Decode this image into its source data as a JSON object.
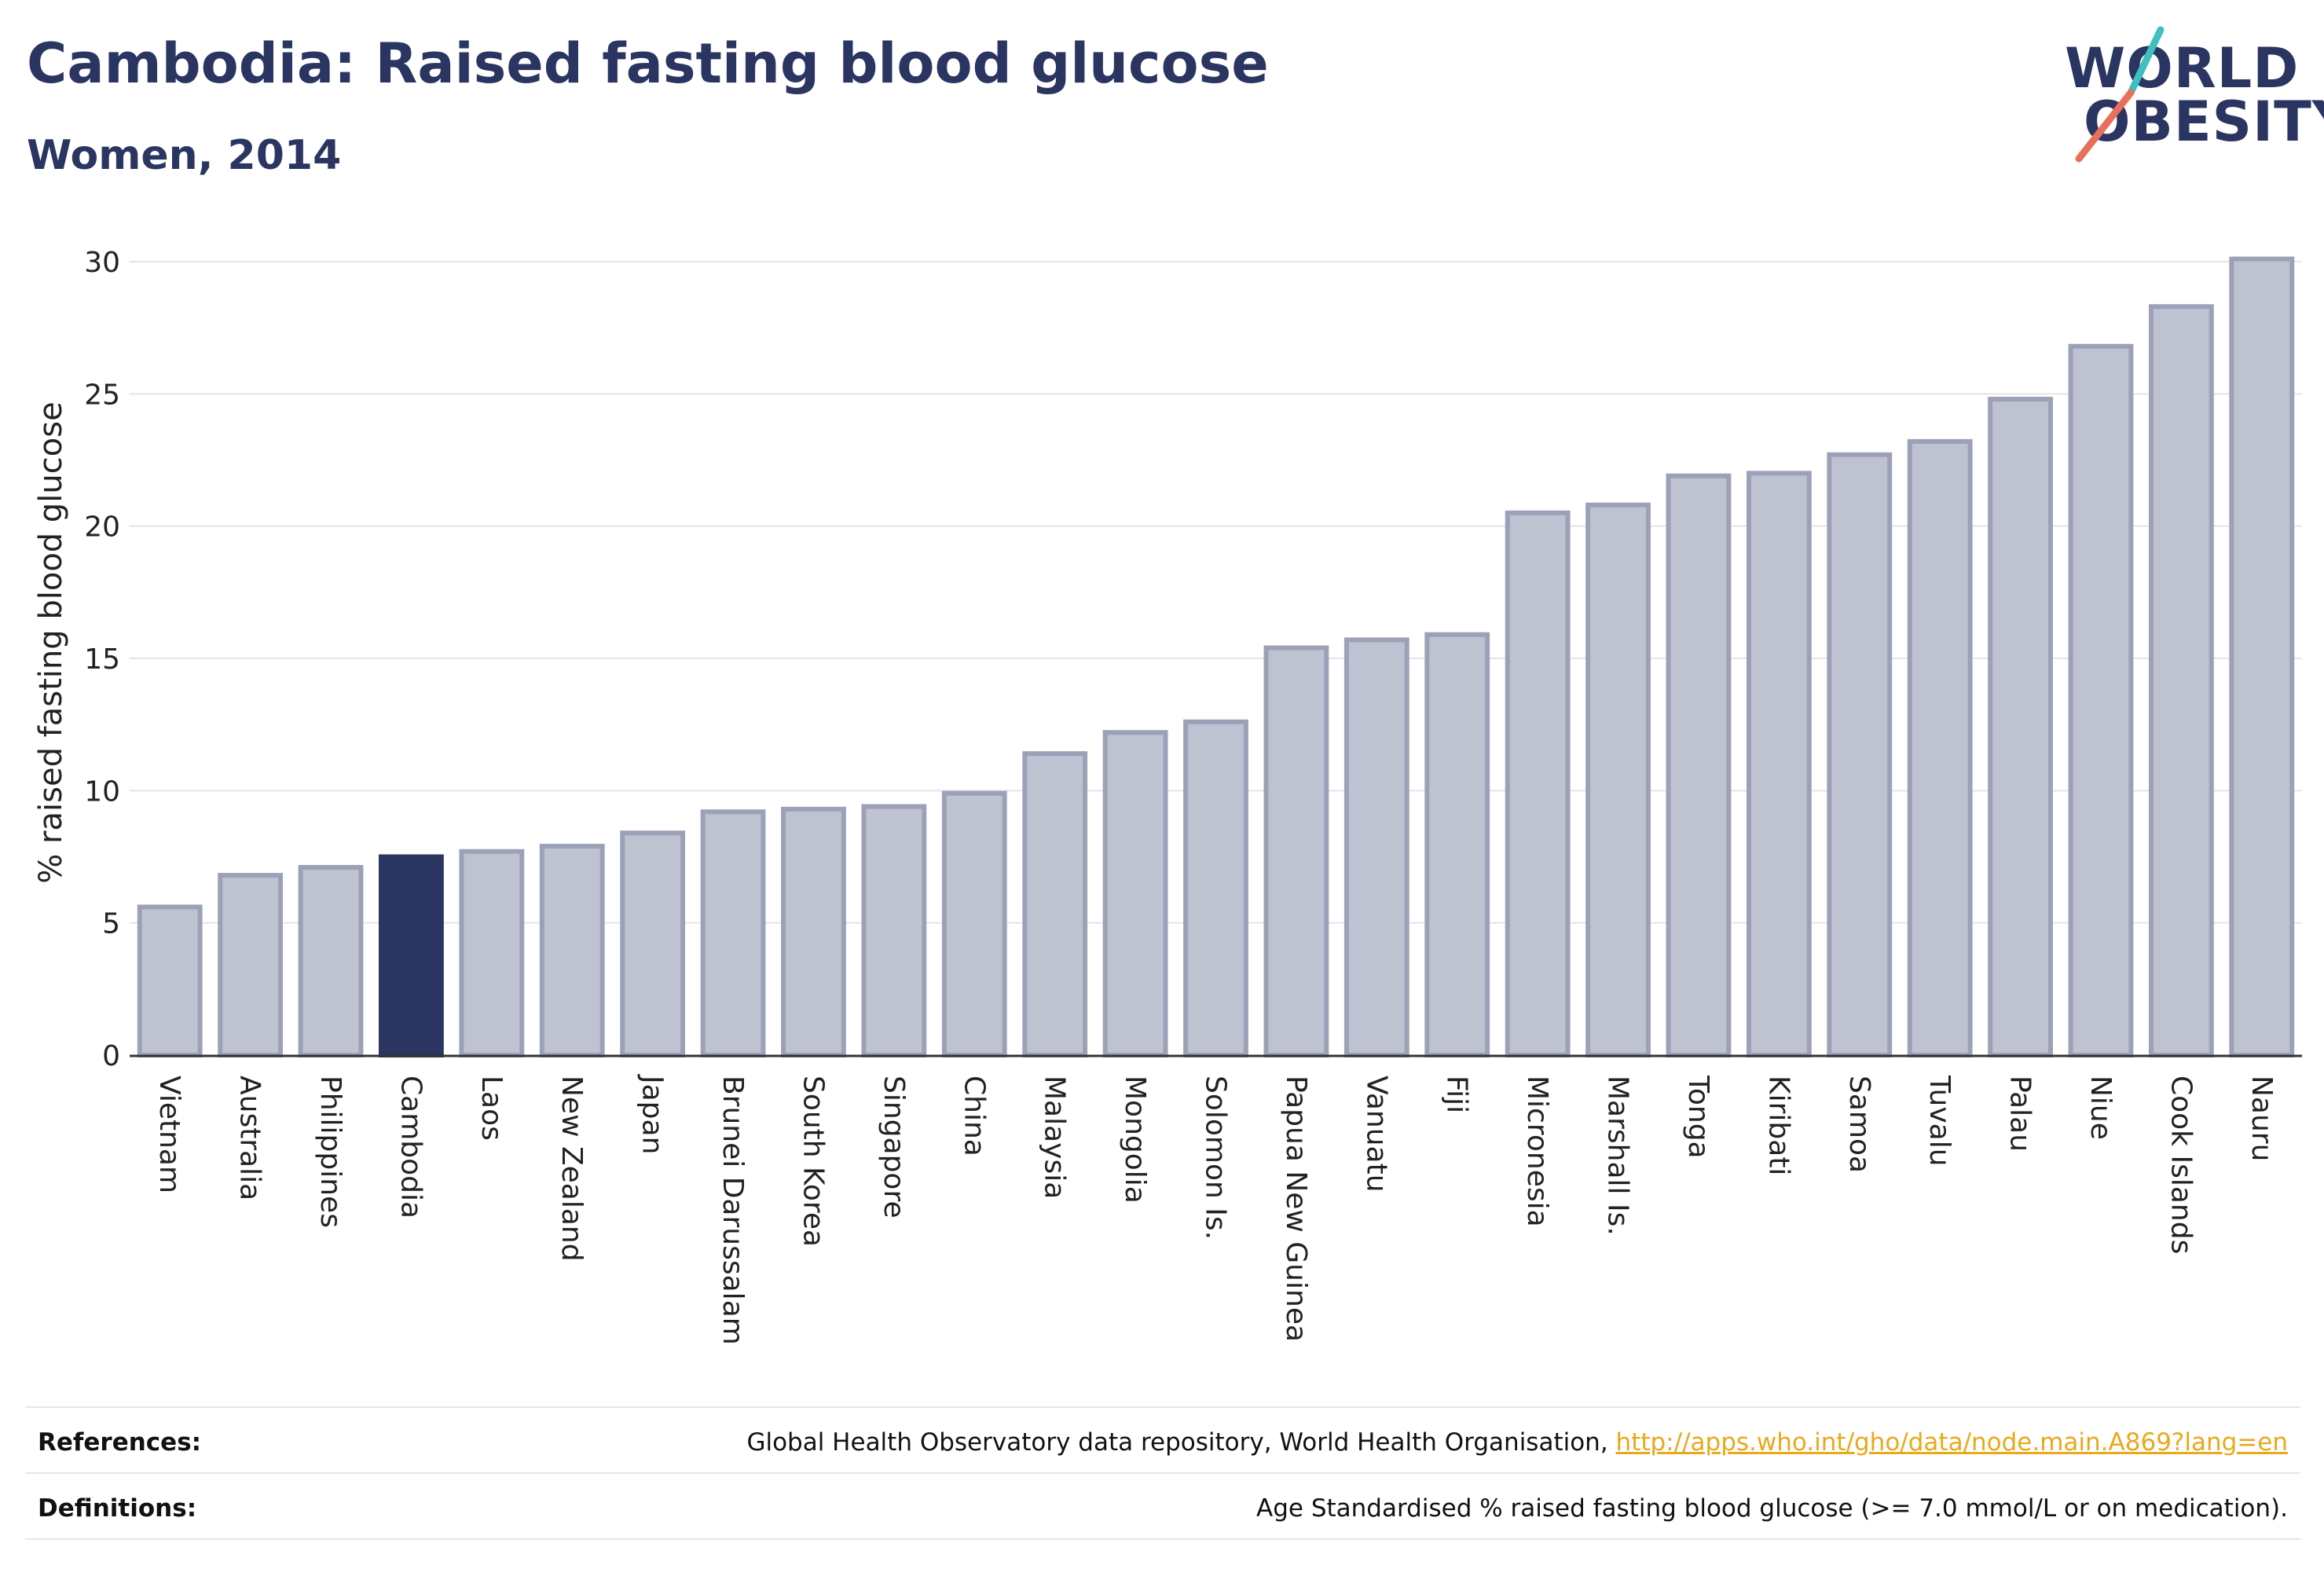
{
  "header": {
    "title": "Cambodia: Raised fasting blood glucose",
    "subtitle": "Women, 2014"
  },
  "logo": {
    "line1": "WORLD",
    "line2": "OBESITY",
    "colors": {
      "text": "#2b3561",
      "slash_top": "#3fbfbf",
      "slash_bottom": "#e8705a"
    }
  },
  "chart_data": {
    "type": "bar",
    "ylabel": "% raised fasting blood glucose",
    "ylim": [
      0,
      30
    ],
    "yticks": [
      0,
      5,
      10,
      15,
      20,
      25,
      30
    ],
    "grid": true,
    "highlight": "Cambodia",
    "colors": {
      "bar": "#bfc2d1",
      "bar_border": "#9ca1b8",
      "highlight": "#2b3561",
      "grid": "#e4e4ea",
      "axis": "#333333"
    },
    "categories": [
      "Vietnam",
      "Australia",
      "Philippines",
      "Cambodia",
      "Laos",
      "New Zealand",
      "Japan",
      "Brunei Darussalam",
      "South Korea",
      "Singapore",
      "China",
      "Malaysia",
      "Mongolia",
      "Solomon Is.",
      "Papua New Guinea",
      "Vanuatu",
      "Fiji",
      "Micronesia",
      "Marshall Is.",
      "Tonga",
      "Kiribati",
      "Samoa",
      "Tuvalu",
      "Palau",
      "Niue",
      "Cook Islands",
      "Nauru"
    ],
    "values": [
      5.6,
      6.8,
      7.1,
      7.5,
      7.7,
      7.9,
      8.4,
      9.2,
      9.3,
      9.4,
      9.9,
      11.4,
      12.2,
      12.6,
      15.4,
      15.7,
      15.9,
      20.5,
      20.8,
      21.9,
      22.0,
      22.7,
      23.2,
      24.8,
      26.8,
      28.3,
      30.1
    ]
  },
  "footer": {
    "references_label": "References:",
    "references_text": "Global Health Observatory data repository, World Health Organisation, ",
    "references_link": "http://apps.who.int/gho/data/node.main.A869?lang=en",
    "definitions_label": "Definitions:",
    "definitions_text": "Age Standardised % raised fasting blood glucose (>= 7.0 mmol/L or on medication)."
  }
}
